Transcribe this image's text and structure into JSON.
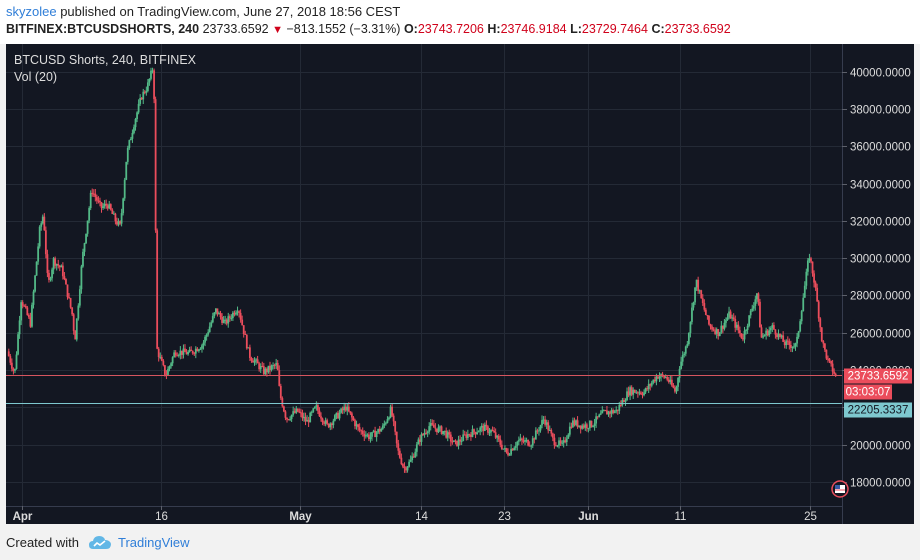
{
  "header": {
    "user": "skyzolee",
    "published_text": "published on TradingView.com, June 27, 2018 18:56 CEST",
    "symbol": "BITFINEX:BTCUSDSHORTS, 240",
    "last": "23733.6592",
    "change": "−813.1552 (−3.31%)",
    "o_label": "O:",
    "o_value": "23743.7206",
    "h_label": "H:",
    "h_value": "23746.9184",
    "l_label": "L:",
    "l_value": "23729.7464",
    "c_label": "C:",
    "c_value": "23733.6592"
  },
  "legend": {
    "title": "BTCUSD Shorts, 240, BITFINEX",
    "vol": "Vol (20)"
  },
  "price_labels": {
    "last": "23733.6592",
    "countdown": "03:03:07",
    "line2": "22205.3337"
  },
  "footer": {
    "created": "Created with",
    "brand": "TradingView"
  },
  "colors": {
    "background": "#131722",
    "up": "#53b987",
    "down": "#eb4d5c",
    "last_line": "#d6555f",
    "cyan_line": "#7ec8cf",
    "grid": "#242a36",
    "axis_text": "#dddddd"
  },
  "chart_data": {
    "type": "candlestick",
    "title": "BTCUSD Shorts, 240, BITFINEX",
    "ylim": [
      16700,
      41500
    ],
    "y_ticks": [
      "18000.0000",
      "20000.0000",
      "22000.0000",
      "24000.0000",
      "26000.0000",
      "28000.0000",
      "30000.0000",
      "32000.0000",
      "34000.0000",
      "36000.0000",
      "38000.0000",
      "40000.0000"
    ],
    "x_labels": [
      "Apr",
      "16",
      "May",
      "14",
      "23",
      "Jun",
      "11",
      "25"
    ],
    "x_label_days": [
      1,
      16,
      31,
      44,
      53,
      62,
      72,
      86
    ],
    "x_range_days": [
      -0.5,
      88.8
    ],
    "last_price": 23733.6592,
    "horizontal_line": 22205.3337,
    "series": [
      {
        "day": -0.5,
        "price": 25000
      },
      {
        "day": 0.3,
        "price": 23800
      },
      {
        "day": 1.0,
        "price": 27800
      },
      {
        "day": 2.0,
        "price": 26500
      },
      {
        "day": 3.0,
        "price": 31500
      },
      {
        "day": 3.4,
        "price": 32400
      },
      {
        "day": 3.9,
        "price": 28500
      },
      {
        "day": 4.5,
        "price": 29900
      },
      {
        "day": 5.4,
        "price": 29400
      },
      {
        "day": 6.5,
        "price": 27000
      },
      {
        "day": 6.8,
        "price": 25600
      },
      {
        "day": 7.6,
        "price": 30000
      },
      {
        "day": 8.6,
        "price": 33700
      },
      {
        "day": 9.6,
        "price": 32700
      },
      {
        "day": 10.3,
        "price": 32900
      },
      {
        "day": 11.2,
        "price": 32000
      },
      {
        "day": 11.7,
        "price": 31700
      },
      {
        "day": 12.4,
        "price": 35600
      },
      {
        "day": 13.2,
        "price": 37300
      },
      {
        "day": 14.0,
        "price": 38700
      },
      {
        "day": 14.6,
        "price": 39200
      },
      {
        "day": 15.2,
        "price": 40200
      },
      {
        "day": 15.4,
        "price": 38000
      },
      {
        "day": 15.6,
        "price": 25200
      },
      {
        "day": 16.6,
        "price": 23700
      },
      {
        "day": 17.6,
        "price": 25000
      },
      {
        "day": 19.2,
        "price": 24900
      },
      {
        "day": 20.6,
        "price": 25400
      },
      {
        "day": 22.0,
        "price": 27200
      },
      {
        "day": 23.0,
        "price": 26500
      },
      {
        "day": 24.4,
        "price": 27400
      },
      {
        "day": 25.6,
        "price": 24800
      },
      {
        "day": 27.2,
        "price": 23900
      },
      {
        "day": 28.6,
        "price": 24300
      },
      {
        "day": 28.9,
        "price": 22700
      },
      {
        "day": 29.6,
        "price": 21400
      },
      {
        "day": 30.8,
        "price": 21800
      },
      {
        "day": 31.8,
        "price": 21200
      },
      {
        "day": 32.8,
        "price": 22000
      },
      {
        "day": 34.0,
        "price": 21000
      },
      {
        "day": 35.2,
        "price": 21600
      },
      {
        "day": 36.0,
        "price": 22000
      },
      {
        "day": 37.4,
        "price": 20800
      },
      {
        "day": 38.6,
        "price": 20400
      },
      {
        "day": 40.0,
        "price": 20900
      },
      {
        "day": 40.9,
        "price": 21900
      },
      {
        "day": 41.6,
        "price": 19700
      },
      {
        "day": 42.3,
        "price": 18700
      },
      {
        "day": 43.0,
        "price": 19100
      },
      {
        "day": 44.0,
        "price": 20300
      },
      {
        "day": 45.0,
        "price": 21000
      },
      {
        "day": 46.6,
        "price": 20700
      },
      {
        "day": 47.8,
        "price": 20000
      },
      {
        "day": 49.0,
        "price": 20500
      },
      {
        "day": 50.8,
        "price": 20900
      },
      {
        "day": 51.8,
        "price": 20700
      },
      {
        "day": 52.6,
        "price": 20100
      },
      {
        "day": 53.4,
        "price": 19500
      },
      {
        "day": 54.6,
        "price": 20200
      },
      {
        "day": 56.0,
        "price": 20100
      },
      {
        "day": 57.4,
        "price": 21400
      },
      {
        "day": 58.4,
        "price": 20200
      },
      {
        "day": 59.4,
        "price": 19900
      },
      {
        "day": 60.4,
        "price": 21200
      },
      {
        "day": 61.6,
        "price": 21000
      },
      {
        "day": 62.6,
        "price": 21100
      },
      {
        "day": 63.8,
        "price": 21700
      },
      {
        "day": 65.2,
        "price": 21800
      },
      {
        "day": 66.6,
        "price": 22900
      },
      {
        "day": 68.2,
        "price": 22800
      },
      {
        "day": 69.6,
        "price": 23700
      },
      {
        "day": 70.6,
        "price": 23600
      },
      {
        "day": 71.6,
        "price": 22800
      },
      {
        "day": 72.0,
        "price": 24200
      },
      {
        "day": 72.8,
        "price": 25400
      },
      {
        "day": 73.8,
        "price": 28800
      },
      {
        "day": 74.4,
        "price": 27700
      },
      {
        "day": 75.2,
        "price": 26400
      },
      {
        "day": 76.2,
        "price": 26000
      },
      {
        "day": 77.4,
        "price": 27000
      },
      {
        "day": 78.8,
        "price": 25700
      },
      {
        "day": 80.4,
        "price": 28200
      },
      {
        "day": 80.8,
        "price": 25700
      },
      {
        "day": 82.0,
        "price": 26300
      },
      {
        "day": 83.4,
        "price": 25400
      },
      {
        "day": 84.6,
        "price": 25300
      },
      {
        "day": 85.4,
        "price": 28100
      },
      {
        "day": 86.0,
        "price": 30200
      },
      {
        "day": 86.6,
        "price": 28600
      },
      {
        "day": 87.4,
        "price": 25500
      },
      {
        "day": 88.0,
        "price": 24500
      },
      {
        "day": 88.8,
        "price": 23733.6592
      }
    ]
  }
}
